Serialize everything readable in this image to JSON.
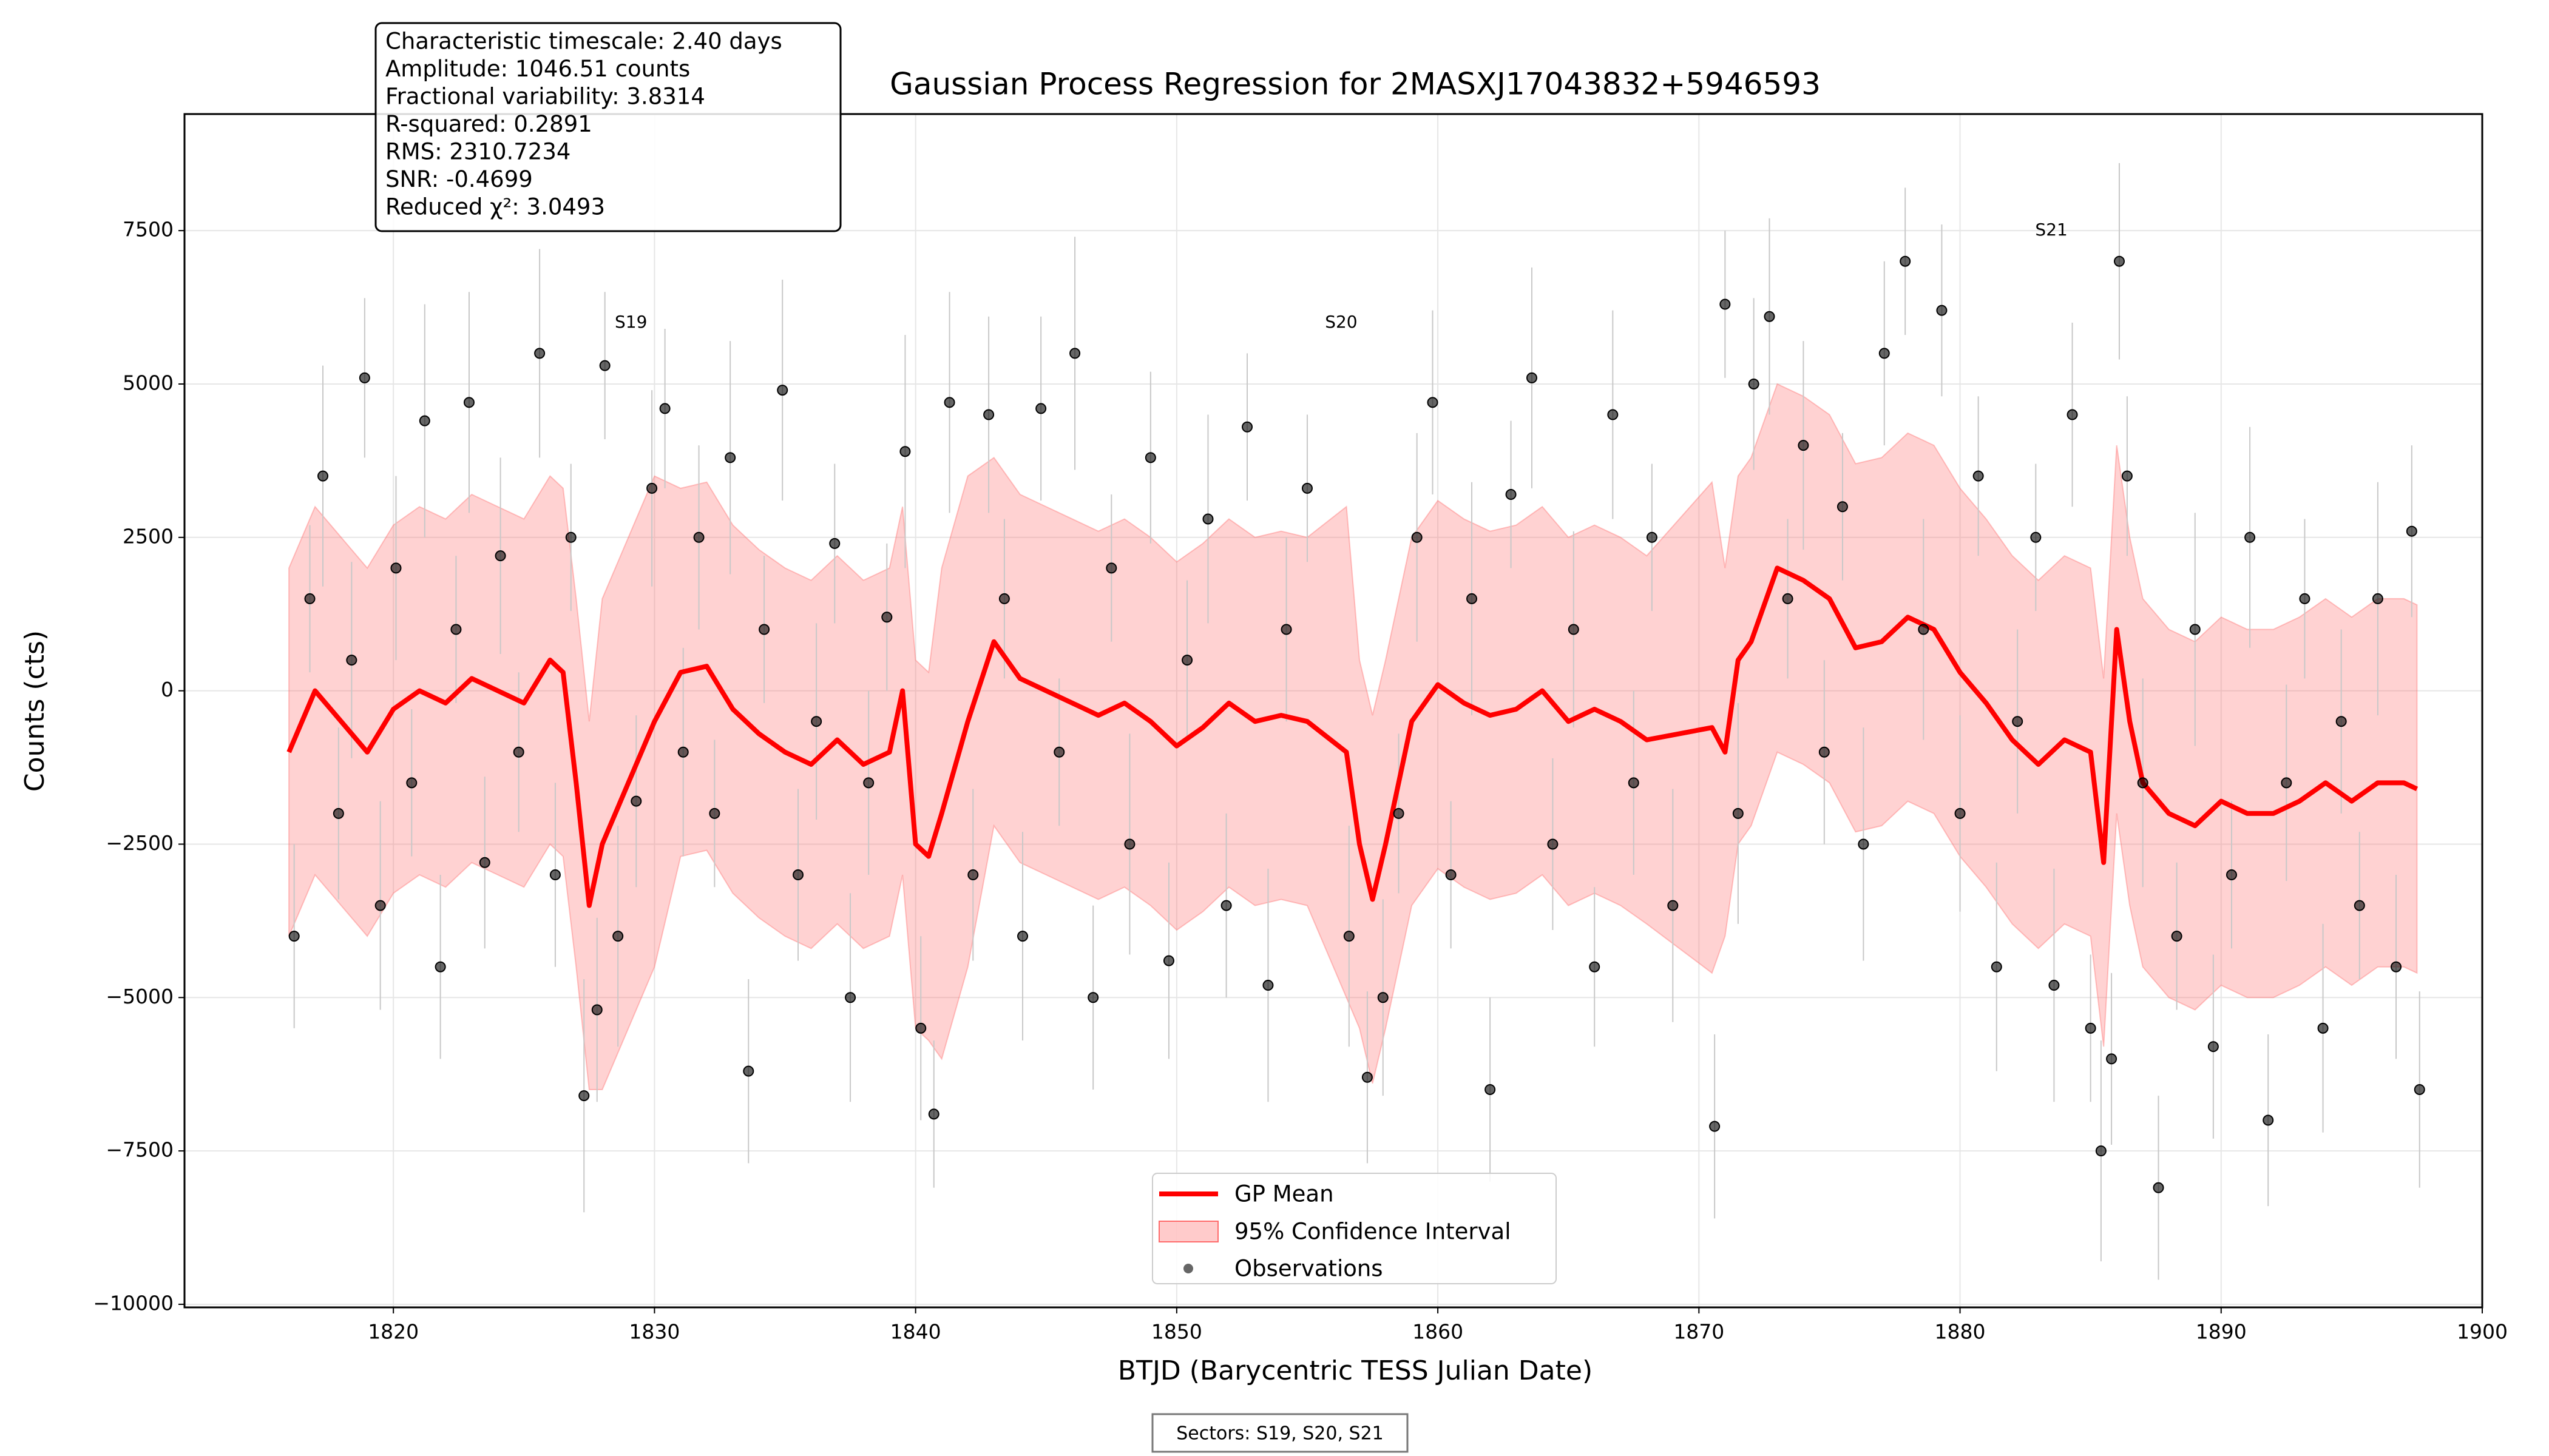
{
  "chart_data": {
    "type": "gp",
    "title": "Gaussian Process Regression for 2MASXJ17043832+5946593",
    "x_label": "BTJD (Barycentric TESS Julian Date)",
    "y_label": "Counts (cts)",
    "xlim": [
      1812,
      1900
    ],
    "ylim": [
      -10050,
      9400
    ],
    "xticks": [
      1820,
      1830,
      1840,
      1850,
      1860,
      1870,
      1880,
      1890,
      1900
    ],
    "yticks": [
      {
        "value": -10000,
        "label": "−10000"
      },
      {
        "value": -7500,
        "label": "−7500"
      },
      {
        "value": -5000,
        "label": "−5000"
      },
      {
        "value": -2500,
        "label": "−2500"
      },
      0,
      2500,
      5000,
      7500
    ],
    "grid": true,
    "legend": "lower center",
    "stats": [
      "Characteristic timescale: 2.40 days",
      "Amplitude: 1046.51 counts",
      "Fractional variability: 3.8314",
      "R-squared: 0.2891",
      "RMS: 2310.7234",
      "SNR: -0.4699",
      "Reduced χ²: 3.0493"
    ],
    "footer": "Sectors: S19, S20, S21",
    "annotations": [
      {
        "text": "S19",
        "x": 1829.1,
        "y": 6000
      },
      {
        "text": "S20",
        "x": 1856.3,
        "y": 6000
      },
      {
        "text": "S21",
        "x": 1883.5,
        "y": 7500
      }
    ],
    "gp": {
      "name": "GP Mean",
      "color": "#ff0000",
      "x": [
        1816,
        1817,
        1818,
        1819,
        1820,
        1821,
        1822,
        1823,
        1824,
        1825,
        1826,
        1826.5,
        1827,
        1827.5,
        1828,
        1829,
        1830,
        1831,
        1832,
        1833,
        1834,
        1835,
        1836,
        1837,
        1838,
        1839,
        1839.5,
        1840,
        1840.5,
        1841,
        1842,
        1843,
        1844,
        1845,
        1846,
        1847,
        1848,
        1849,
        1850,
        1851,
        1852,
        1853,
        1854,
        1855,
        1856.5,
        1857,
        1857.5,
        1858,
        1859,
        1860,
        1861,
        1862,
        1863,
        1864,
        1865,
        1866,
        1867,
        1868,
        1870.5,
        1871,
        1871.5,
        1872,
        1873,
        1874,
        1875,
        1876,
        1877,
        1878,
        1879,
        1880,
        1881,
        1882,
        1883,
        1884,
        1885,
        1885.5,
        1886,
        1886.5,
        1887,
        1888,
        1889,
        1890,
        1891,
        1892,
        1893,
        1894,
        1895,
        1896,
        1897,
        1897.5
      ],
      "values": [
        -1000,
        0,
        -500,
        -1000,
        -300,
        0,
        -200,
        200,
        0,
        -200,
        500,
        300,
        -1500,
        -3500,
        -2500,
        -1500,
        -500,
        300,
        400,
        -300,
        -700,
        -1000,
        -1200,
        -800,
        -1200,
        -1000,
        0,
        -2500,
        -2700,
        -2000,
        -500,
        800,
        200,
        0,
        -200,
        -400,
        -200,
        -500,
        -900,
        -600,
        -200,
        -500,
        -400,
        -500,
        -1000,
        -2500,
        -3400,
        -2500,
        -500,
        100,
        -200,
        -400,
        -300,
        0,
        -500,
        -300,
        -500,
        -800,
        -600,
        -1000,
        500,
        800,
        2000,
        1800,
        1500,
        700,
        800,
        1200,
        1000,
        300,
        -200,
        -800,
        -1200,
        -800,
        -1000,
        -2800,
        1000,
        -500,
        -1500,
        -2000,
        -2200,
        -1800,
        -2000,
        -2000,
        -1800,
        -1500,
        -1800,
        -1500,
        -1500,
        -1600
      ]
    },
    "band": {
      "name": "95% Confidence Interval",
      "color": "#ff6b6b",
      "lower": [
        -4000,
        -3000,
        -3500,
        -4000,
        -3300,
        -3000,
        -3200,
        -2800,
        -3000,
        -3200,
        -2500,
        -2700,
        -4500,
        -6500,
        -6500,
        -5500,
        -4500,
        -2700,
        -2600,
        -3300,
        -3700,
        -4000,
        -4200,
        -3800,
        -4200,
        -4000,
        -3000,
        -5500,
        -5700,
        -6000,
        -4500,
        -2200,
        -2800,
        -3000,
        -3200,
        -3400,
        -3200,
        -3500,
        -3900,
        -3600,
        -3200,
        -3500,
        -3400,
        -3500,
        -5000,
        -5500,
        -6400,
        -5500,
        -3500,
        -2900,
        -3200,
        -3400,
        -3300,
        -3000,
        -3500,
        -3300,
        -3500,
        -3800,
        -4600,
        -4000,
        -2500,
        -2200,
        -1000,
        -1200,
        -1500,
        -2300,
        -2200,
        -1800,
        -2000,
        -2700,
        -3200,
        -3800,
        -4200,
        -3800,
        -4000,
        -5800,
        -2000,
        -3500,
        -4500,
        -5000,
        -5200,
        -4800,
        -5000,
        -5000,
        -4800,
        -4500,
        -4800,
        -4500,
        -4500,
        -4600
      ],
      "upper": [
        2000,
        3000,
        2500,
        2000,
        2700,
        3000,
        2800,
        3200,
        3000,
        2800,
        3500,
        3300,
        1500,
        -500,
        1500,
        2500,
        3500,
        3300,
        3400,
        2700,
        2300,
        2000,
        1800,
        2200,
        1800,
        2000,
        3000,
        500,
        300,
        2000,
        3500,
        3800,
        3200,
        3000,
        2800,
        2600,
        2800,
        2500,
        2100,
        2400,
        2800,
        2500,
        2600,
        2500,
        3000,
        500,
        -400,
        500,
        2500,
        3100,
        2800,
        2600,
        2700,
        3000,
        2500,
        2700,
        2500,
        2200,
        3400,
        2000,
        3500,
        3800,
        5000,
        4800,
        4500,
        3700,
        3800,
        4200,
        4000,
        3300,
        2800,
        2200,
        1800,
        2200,
        2000,
        200,
        4000,
        2500,
        1500,
        1000,
        800,
        1200,
        1000,
        1000,
        1200,
        1500,
        1200,
        1500,
        1500,
        1400
      ]
    },
    "observations": {
      "name": "Observations",
      "color": "#000000",
      "x": [
        1816.2,
        1816.8,
        1817.3,
        1817.9,
        1818.4,
        1818.9,
        1819.5,
        1820.1,
        1820.7,
        1821.2,
        1821.8,
        1822.4,
        1822.9,
        1823.5,
        1824.1,
        1824.8,
        1825.6,
        1826.2,
        1826.8,
        1827.3,
        1827.8,
        1828.1,
        1828.6,
        1829.3,
        1829.9,
        1830.4,
        1831.1,
        1831.7,
        1832.3,
        1832.9,
        1833.6,
        1834.2,
        1834.9,
        1835.5,
        1836.2,
        1836.9,
        1837.5,
        1838.2,
        1838.9,
        1839.6,
        1840.2,
        1840.7,
        1841.3,
        1842.2,
        1842.8,
        1843.4,
        1844.1,
        1844.8,
        1845.5,
        1846.1,
        1846.8,
        1847.5,
        1848.2,
        1849.0,
        1849.7,
        1850.4,
        1851.2,
        1851.9,
        1852.7,
        1853.5,
        1854.2,
        1855.0,
        1856.6,
        1857.3,
        1857.9,
        1858.5,
        1859.2,
        1859.8,
        1860.5,
        1861.3,
        1862.0,
        1862.8,
        1863.6,
        1864.4,
        1865.2,
        1866.0,
        1866.7,
        1867.5,
        1868.2,
        1869.0,
        1870.6,
        1871.0,
        1871.5,
        1872.1,
        1872.7,
        1873.4,
        1874.0,
        1874.8,
        1875.5,
        1876.3,
        1877.1,
        1877.9,
        1878.6,
        1879.3,
        1880.0,
        1880.7,
        1881.4,
        1882.2,
        1882.9,
        1883.6,
        1884.3,
        1885.0,
        1885.4,
        1885.8,
        1886.1,
        1886.4,
        1887.0,
        1887.6,
        1888.3,
        1889.0,
        1889.7,
        1890.4,
        1891.1,
        1891.8,
        1892.5,
        1893.2,
        1893.9,
        1894.6,
        1895.3,
        1896.0,
        1896.7,
        1897.3,
        1897.6
      ],
      "values": [
        -4000,
        1500,
        3500,
        -2000,
        500,
        5100,
        -3500,
        2000,
        -1500,
        4400,
        -4500,
        1000,
        4700,
        -2800,
        2200,
        -1000,
        5500,
        -3000,
        2500,
        -6600,
        -5200,
        5300,
        -4000,
        -1800,
        3300,
        4600,
        -1000,
        2500,
        -2000,
        3800,
        -6200,
        1000,
        4900,
        -3000,
        -500,
        2400,
        -5000,
        -1500,
        1200,
        3900,
        -5500,
        -6900,
        4700,
        -3000,
        4500,
        1500,
        -4000,
        4600,
        -1000,
        5500,
        -5000,
        2000,
        -2500,
        3800,
        -4400,
        500,
        2800,
        -3500,
        4300,
        -4800,
        1000,
        3300,
        -4000,
        -6300,
        -5000,
        -2000,
        2500,
        4700,
        -3000,
        1500,
        -6500,
        3200,
        5100,
        -2500,
        1000,
        -4500,
        4500,
        -1500,
        2500,
        -3500,
        -7100,
        6300,
        -2000,
        5000,
        6100,
        1500,
        4000,
        -1000,
        3000,
        -2500,
        5500,
        7000,
        1000,
        6200,
        -2000,
        3500,
        -4500,
        -500,
        2500,
        -4800,
        4500,
        -5500,
        -7500,
        -6000,
        7000,
        3500,
        -1500,
        -8100,
        -4000,
        1000,
        -5800,
        -3000,
        2500,
        -7000,
        -1500,
        1500,
        -5500,
        -500,
        -3500,
        1500,
        -4500,
        2600,
        -6500
      ],
      "errors": [
        1500,
        1200,
        1800,
        1400,
        1600,
        1300,
        1700,
        1500,
        1200,
        1900,
        1500,
        1200,
        1800,
        1400,
        1600,
        1300,
        1700,
        1500,
        1200,
        1900,
        1500,
        1200,
        1800,
        1400,
        1600,
        1300,
        1700,
        1500,
        1200,
        1900,
        1500,
        1200,
        1800,
        1400,
        1600,
        1300,
        1700,
        1500,
        1200,
        1900,
        1500,
        1200,
        1800,
        1400,
        1600,
        1300,
        1700,
        1500,
        1200,
        1900,
        1500,
        1200,
        1800,
        1400,
        1600,
        1300,
        1700,
        1500,
        1200,
        1900,
        1500,
        1200,
        1800,
        1400,
        1600,
        1300,
        1700,
        1500,
        1200,
        1900,
        1500,
        1200,
        1800,
        1400,
        1600,
        1300,
        1700,
        1500,
        1200,
        1900,
        1500,
        1200,
        1800,
        1400,
        1600,
        1300,
        1700,
        1500,
        1200,
        1900,
        1500,
        1200,
        1800,
        1400,
        1600,
        1300,
        1700,
        1500,
        1200,
        1900,
        1500,
        1200,
        1800,
        1400,
        1600,
        1300,
        1700,
        1500,
        1200,
        1900,
        1500,
        1200,
        1800,
        1400,
        1600,
        1300,
        1700,
        1500,
        1200,
        1900,
        1500,
        1400,
        1600
      ]
    }
  }
}
